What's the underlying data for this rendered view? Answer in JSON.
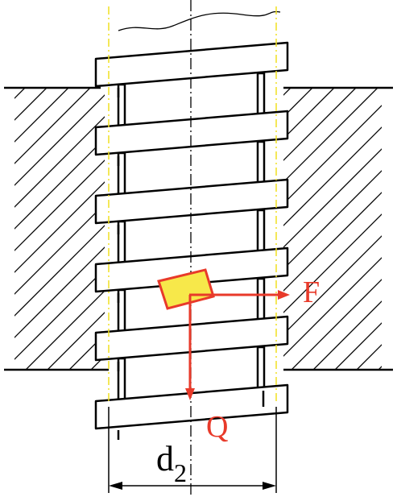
{
  "labels": {
    "force_f": "F",
    "force_q": "Q",
    "diameter_main": "d",
    "diameter_sub": "2"
  },
  "colors": {
    "outline": "#000000",
    "centerline": "#000000",
    "pitch_line": "#f0e020",
    "force": "#e83a2a",
    "block_fill": "#f7e84a",
    "block_stroke": "#e83a2a"
  }
}
